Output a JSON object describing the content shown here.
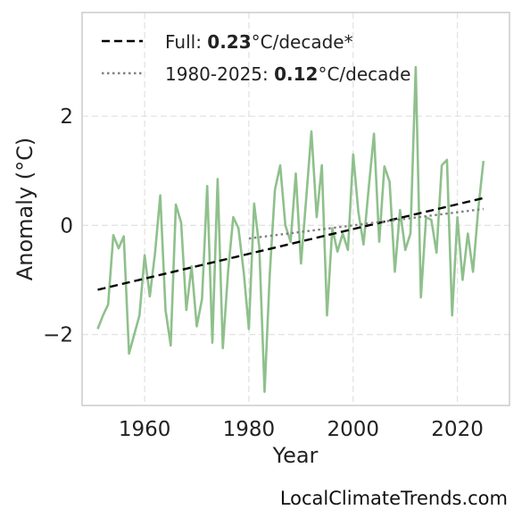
{
  "chart_data": {
    "type": "line",
    "xlabel": "Year",
    "ylabel": "Anomaly (°C)",
    "xlim": [
      1948,
      2030
    ],
    "ylim": [
      -3.3,
      3.9
    ],
    "xticks": [
      1960,
      1980,
      2000,
      2020
    ],
    "yticks": [
      -2,
      0,
      2
    ],
    "ytick_labels": [
      "−2",
      "0",
      "2"
    ],
    "grid": true,
    "legend_position": "top-left",
    "series": [
      {
        "color": "#8fc08c",
        "x": [
          1951,
          1952,
          1953,
          1954,
          1955,
          1956,
          1957,
          1958,
          1959,
          1960,
          1961,
          1962,
          1963,
          1964,
          1965,
          1966,
          1967,
          1968,
          1969,
          1970,
          1971,
          1972,
          1973,
          1974,
          1975,
          1976,
          1977,
          1978,
          1979,
          1980,
          1981,
          1982,
          1983,
          1984,
          1985,
          1986,
          1987,
          1988,
          1989,
          1990,
          1991,
          1992,
          1993,
          1994,
          1995,
          1996,
          1997,
          1998,
          1999,
          2000,
          2001,
          2002,
          2003,
          2004,
          2005,
          2006,
          2007,
          2008,
          2009,
          2010,
          2011,
          2012,
          2013,
          2014,
          2015,
          2016,
          2017,
          2018,
          2019,
          2020,
          2021,
          2022,
          2023,
          2024,
          2025
        ],
        "y": [
          -1.9,
          -1.65,
          -1.45,
          -0.18,
          -0.42,
          -0.2,
          -2.35,
          -2.0,
          -1.65,
          -0.55,
          -1.3,
          -0.5,
          0.55,
          -1.55,
          -2.2,
          0.38,
          0.05,
          -1.55,
          -0.75,
          -1.85,
          -1.35,
          0.72,
          -2.15,
          0.85,
          -2.25,
          -0.85,
          0.15,
          -0.05,
          -0.85,
          -1.9,
          0.4,
          -0.4,
          -3.05,
          -0.9,
          0.65,
          1.1,
          0.0,
          -0.3,
          0.95,
          -0.7,
          0.5,
          1.72,
          0.15,
          1.1,
          -1.65,
          -0.05,
          -0.48,
          -0.15,
          -0.45,
          1.3,
          0.25,
          -0.35,
          0.7,
          1.68,
          -0.3,
          1.08,
          0.8,
          -0.85,
          0.28,
          -0.45,
          -0.15,
          2.9,
          -1.32,
          0.15,
          0.1,
          -0.5,
          1.1,
          1.2,
          -1.65,
          0.15,
          -1.0,
          -0.15,
          -0.85,
          0.3,
          1.18
        ]
      }
    ],
    "trends": [
      {
        "label": "Full: ",
        "value": "0.23",
        "unit": "°C/decade*",
        "style": "dashed",
        "color": "#000000",
        "x": [
          1951,
          2025
        ],
        "y": [
          -1.18,
          0.5
        ]
      },
      {
        "label": "1980-2025: ",
        "value": "0.12",
        "unit": "°C/decade",
        "style": "dotted",
        "color": "#808080",
        "x": [
          1980,
          2025
        ],
        "y": [
          -0.24,
          0.3
        ]
      }
    ]
  },
  "credit": "LocalClimateTrends.com"
}
